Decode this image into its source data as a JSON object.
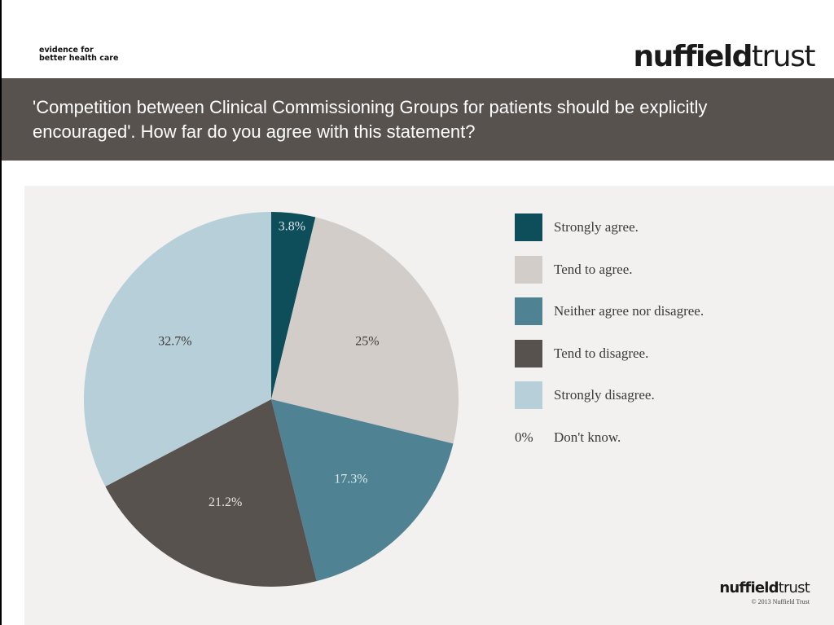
{
  "header": {
    "tagline_line1": "evidence for",
    "tagline_line2": "better health care",
    "logo_part1": "nuffield",
    "logo_part2": "trust"
  },
  "title": "'Competition between Clinical Commissioning Groups for patients should be explicitly encouraged'. How far do you agree with this statement?",
  "footer": {
    "logo_part1": "nuffield",
    "logo_part2": "trust",
    "copyright": "© 2013 Nuffield Trust"
  },
  "chart_data": {
    "type": "pie",
    "title": "'Competition between Clinical Commissioning Groups for patients should be explicitly encouraged'. How far do you agree with this statement?",
    "legend_position": "right",
    "slices": [
      {
        "label": "Strongly agree.",
        "value": 3.8,
        "value_label": "3.8%",
        "color": "#0d4e5a"
      },
      {
        "label": "Tend to agree.",
        "value": 25,
        "value_label": "25%",
        "color": "#d3cdc9"
      },
      {
        "label": "Neither agree nor disagree.",
        "value": 17.3,
        "value_label": "17.3%",
        "color": "#4f8393"
      },
      {
        "label": "Tend to disagree.",
        "value": 21.2,
        "value_label": "21.2%",
        "color": "#58524e"
      },
      {
        "label": "Strongly disagree.",
        "value": 32.7,
        "value_label": "32.7%",
        "color": "#b7cfd8"
      },
      {
        "label": "Don't know.",
        "value": 0,
        "value_label": "0%",
        "color": "#f2f1ef"
      }
    ]
  }
}
